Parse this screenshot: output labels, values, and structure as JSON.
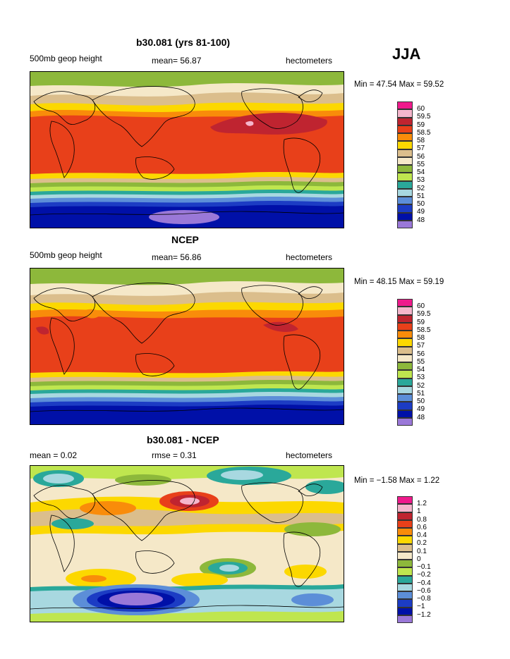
{
  "season": "JJA",
  "panels": [
    {
      "title": "b30.081 (yrs 81-100)",
      "left_label": "500mb geop height",
      "center_label": "mean=   56.87",
      "right_label": "hectometers",
      "minmax": "Min =   47.54 Max =   59.52",
      "legend": {
        "levels": [
          "60",
          "59.5",
          "59",
          "58.5",
          "58",
          "57",
          "56",
          "55",
          "54",
          "53",
          "52",
          "51",
          "50",
          "49",
          "48"
        ],
        "colors": [
          "#ef1a8c",
          "#f5b6cc",
          "#bf2430",
          "#e8401a",
          "#f98c0a",
          "#fcd800",
          "#dbbe8c",
          "#f5e8c8",
          "#8db83b",
          "#bfe64f",
          "#2aa89a",
          "#a8d8e0",
          "#5c8ed8",
          "#1c3cc4",
          "#0010a8",
          "#9a78d8"
        ]
      }
    },
    {
      "title": "NCEP",
      "left_label": "500mb geop height",
      "center_label": "mean=   56.86",
      "right_label": "hectometers",
      "minmax": "Min =   48.15 Max =   59.19",
      "legend": {
        "levels": [
          "60",
          "59.5",
          "59",
          "58.5",
          "58",
          "57",
          "56",
          "55",
          "54",
          "53",
          "52",
          "51",
          "50",
          "49",
          "48"
        ],
        "colors": [
          "#ef1a8c",
          "#f5b6cc",
          "#bf2430",
          "#e8401a",
          "#f98c0a",
          "#fcd800",
          "#dbbe8c",
          "#f5e8c8",
          "#8db83b",
          "#bfe64f",
          "#2aa89a",
          "#a8d8e0",
          "#5c8ed8",
          "#1c3cc4",
          "#0010a8",
          "#9a78d8"
        ]
      }
    },
    {
      "title": "b30.081 - NCEP",
      "left_label": "mean =    0.02",
      "center_label": "rmse =    0.31",
      "right_label": "hectometers",
      "minmax": "Min =  −1.58 Max =    1.22",
      "legend": {
        "levels": [
          "1.2",
          "1",
          "0.8",
          "0.6",
          "0.4",
          "0.2",
          "0.1",
          "0",
          "−0.1",
          "−0.2",
          "−0.4",
          "−0.6",
          "−0.8",
          "−1",
          "−1.2"
        ],
        "colors": [
          "#ef1a8c",
          "#f5b6cc",
          "#bf2430",
          "#e8401a",
          "#f98c0a",
          "#fcd800",
          "#dbbe8c",
          "#f5e8c8",
          "#8db83b",
          "#bfe64f",
          "#2aa89a",
          "#a8d8e0",
          "#5c8ed8",
          "#1c3cc4",
          "#0010a8",
          "#9a78d8"
        ]
      }
    }
  ]
}
